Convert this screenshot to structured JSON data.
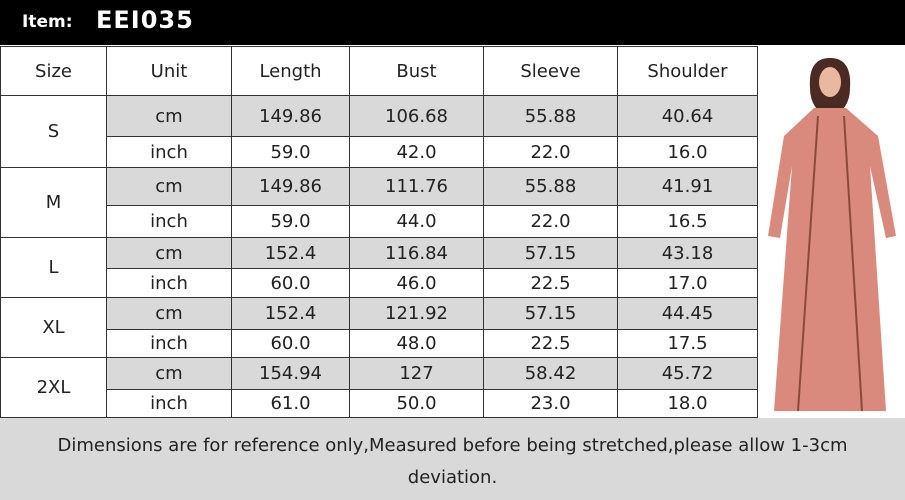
{
  "header": {
    "label": "Item:",
    "code": "EEI035"
  },
  "table": {
    "columns": [
      "Size",
      "Unit",
      "Length",
      "Bust",
      "Sleeve",
      "Shoulder"
    ],
    "sizes": [
      {
        "size": "S",
        "rows": [
          [
            "cm",
            "149.86",
            "106.68",
            "55.88",
            "40.64"
          ],
          [
            "inch",
            "59.0",
            "42.0",
            "22.0",
            "16.0"
          ]
        ]
      },
      {
        "size": "M",
        "rows": [
          [
            "cm",
            "149.86",
            "111.76",
            "55.88",
            "41.91"
          ],
          [
            "inch",
            "59.0",
            "44.0",
            "22.0",
            "16.5"
          ]
        ]
      },
      {
        "size": "L",
        "rows": [
          [
            "cm",
            "152.4",
            "116.84",
            "57.15",
            "43.18"
          ],
          [
            "inch",
            "60.0",
            "46.0",
            "22.5",
            "17.0"
          ]
        ]
      },
      {
        "size": "XL",
        "rows": [
          [
            "cm",
            "152.4",
            "121.92",
            "57.15",
            "44.45"
          ],
          [
            "inch",
            "60.0",
            "48.0",
            "22.5",
            "17.5"
          ]
        ]
      },
      {
        "size": "2XL",
        "rows": [
          [
            "cm",
            "154.94",
            "127",
            "58.42",
            "45.72"
          ],
          [
            "inch",
            "61.0",
            "50.0",
            "23.0",
            "18.0"
          ]
        ]
      }
    ]
  },
  "note": "Dimensions are for reference only,Measured before being stretched,please allow 1-3cm deviation."
}
